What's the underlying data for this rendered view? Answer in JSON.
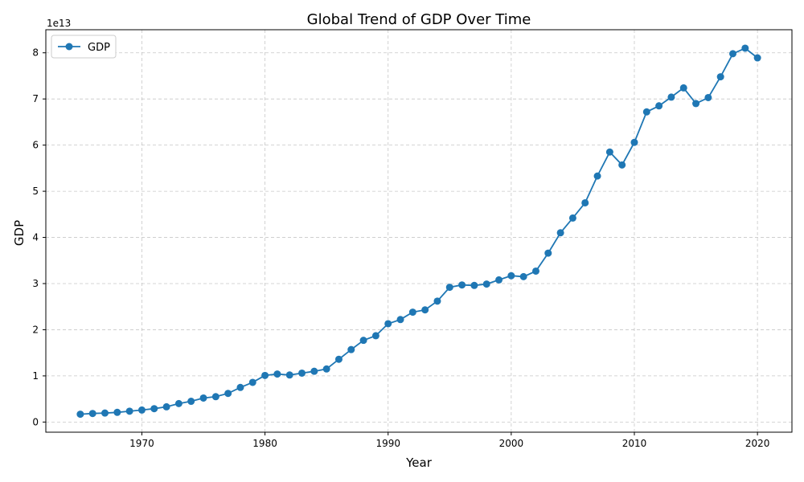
{
  "chart_data": {
    "type": "line",
    "title": "Global Trend of GDP Over Time",
    "xlabel": "Year",
    "ylabel": "GDP",
    "y_offset_label": "1e13",
    "xlim": [
      1962.2,
      2022.8
    ],
    "ylim": [
      -2200000000000.0,
      85000000000000.0
    ],
    "x_ticks": [
      1970,
      1980,
      1990,
      2000,
      2010,
      2020
    ],
    "y_ticks": [
      0,
      1,
      2,
      3,
      4,
      5,
      6,
      7,
      8
    ],
    "y_tick_scale": 10000000000000.0,
    "grid": true,
    "legend_position": "top-left",
    "series": [
      {
        "name": "GDP",
        "color": "#1f77b4",
        "marker": "circle",
        "x": [
          1965,
          1966,
          1967,
          1968,
          1969,
          1970,
          1971,
          1972,
          1973,
          1974,
          1975,
          1976,
          1977,
          1978,
          1979,
          1980,
          1981,
          1982,
          1983,
          1984,
          1985,
          1986,
          1987,
          1988,
          1989,
          1990,
          1991,
          1992,
          1993,
          1994,
          1995,
          1996,
          1997,
          1998,
          1999,
          2000,
          2001,
          2002,
          2003,
          2004,
          2005,
          2006,
          2007,
          2008,
          2009,
          2010,
          2011,
          2012,
          2013,
          2014,
          2015,
          2016,
          2017,
          2018,
          2019,
          2020
        ],
        "y": [
          1700000000000.0,
          1850000000000.0,
          1950000000000.0,
          2100000000000.0,
          2350000000000.0,
          2600000000000.0,
          2900000000000.0,
          3300000000000.0,
          4000000000000.0,
          4500000000000.0,
          5200000000000.0,
          5500000000000.0,
          6200000000000.0,
          7500000000000.0,
          8600000000000.0,
          10100000000000.0,
          10400000000000.0,
          10200000000000.0,
          10600000000000.0,
          11000000000000.0,
          11500000000000.0,
          13600000000000.0,
          15700000000000.0,
          17700000000000.0,
          18700000000000.0,
          21300000000000.0,
          22200000000000.0,
          23800000000000.0,
          24300000000000.0,
          26200000000000.0,
          29200000000000.0,
          29700000000000.0,
          29600000000000.0,
          29900000000000.0,
          30800000000000.0,
          31700000000000.0,
          31500000000000.0,
          32700000000000.0,
          36600000000000.0,
          41000000000000.0,
          44200000000000.0,
          47500000000000.0,
          53300000000000.0,
          58500000000000.0,
          55700000000000.0,
          60600000000000.0,
          67200000000000.0,
          68500000000000.0,
          70400000000000.0,
          72400000000000.0,
          69000000000000.0,
          70300000000000.0,
          74800000000000.0,
          79800000000000.0,
          81000000000000.0,
          78900000000000.0
        ]
      }
    ]
  }
}
